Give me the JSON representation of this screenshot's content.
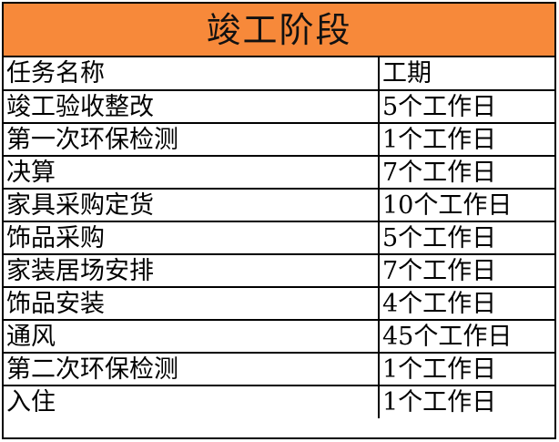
{
  "title": "竣工阶段",
  "colors": {
    "header_fill": "#f7893a",
    "border": "#000000"
  },
  "table": {
    "headers": [
      "任务名称",
      "工期"
    ],
    "rows": [
      [
        "竣工验收整改",
        "5个工作日"
      ],
      [
        "第一次环保检测",
        "1个工作日"
      ],
      [
        "决算",
        "7个工作日"
      ],
      [
        "家具采购定货",
        "10个工作日"
      ],
      [
        "饰品采购",
        "5个工作日"
      ],
      [
        "家装居场安排",
        "7个工作日"
      ],
      [
        "饰品安装",
        "4个工作日"
      ],
      [
        "通风",
        "45个工作日"
      ],
      [
        "第二次环保检测",
        "1个工作日"
      ],
      [
        "入住",
        "1个工作日"
      ]
    ]
  }
}
